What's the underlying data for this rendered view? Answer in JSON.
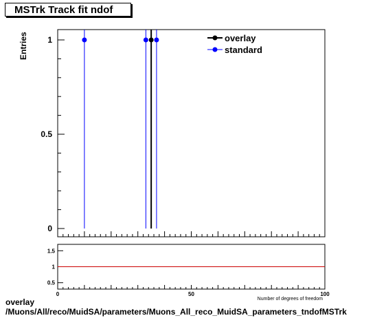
{
  "chart_data": [
    {
      "type": "scatter",
      "title": "MSTrk Track fit ndof",
      "xlabel": "Number of degrees of freedom",
      "ylabel": "Entries",
      "xlim": [
        0,
        100
      ],
      "ylim": [
        0,
        1.05
      ],
      "yticks": [
        0,
        0.5,
        1
      ],
      "ytick_labels": [
        "0",
        "0.5",
        "1"
      ],
      "legend_position": "top-right",
      "series": [
        {
          "name": "overlay",
          "color": "#000000",
          "x": [
            35
          ],
          "y": [
            1
          ]
        },
        {
          "name": "standard",
          "color": "#0000ff",
          "x": [
            10,
            33,
            37
          ],
          "y": [
            1,
            1,
            1
          ]
        }
      ]
    },
    {
      "type": "line",
      "xlim": [
        0,
        100
      ],
      "ylim": [
        0.3,
        1.7
      ],
      "yticks": [
        0.5,
        1,
        1.5
      ],
      "ytick_labels": [
        "0.5",
        "1",
        "1.5"
      ],
      "xticks": [
        0,
        50,
        100
      ],
      "xtick_labels": [
        "0",
        "50",
        "100"
      ],
      "xlabel": "Number of degrees of freedom",
      "reference_line": {
        "y": 1,
        "color": "#cc0000"
      }
    }
  ],
  "footer": {
    "line1": "overlay",
    "line2": "/Muons/All/reco/MuidSA/parameters/Muons_All_reco_MuidSA_parameters_tndofMSTrk"
  }
}
